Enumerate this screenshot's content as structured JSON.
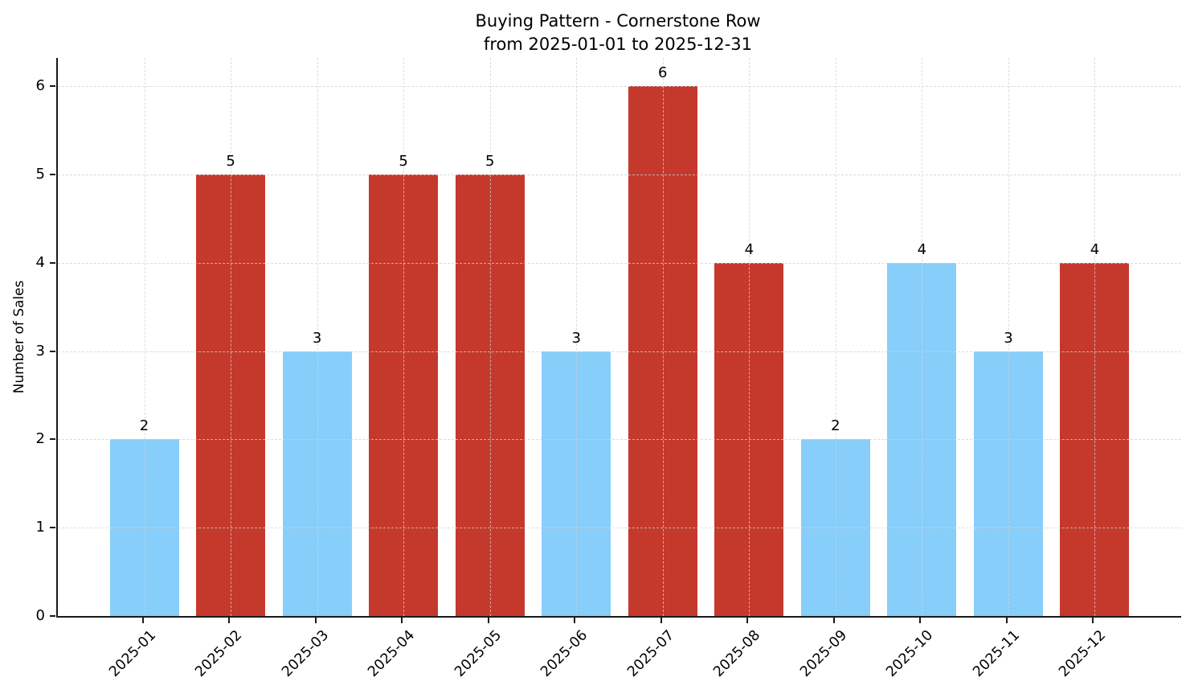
{
  "figure": {
    "background": "#ffffff"
  },
  "chart_data": {
    "type": "bar",
    "title": "Buying Pattern - Cornerstone Row\nfrom 2025-01-01 to 2025-12-31",
    "title_lines": [
      "Buying Pattern - Cornerstone Row",
      "from 2025-01-01 to 2025-12-31"
    ],
    "xlabel": "",
    "ylabel": "Number of Sales",
    "categories": [
      "2025-01",
      "2025-02",
      "2025-03",
      "2025-04",
      "2025-05",
      "2025-06",
      "2025-07",
      "2025-08",
      "2025-09",
      "2025-10",
      "2025-11",
      "2025-12"
    ],
    "values": [
      2,
      5,
      3,
      5,
      5,
      3,
      6,
      4,
      2,
      4,
      3,
      4
    ],
    "value_labels": [
      "2",
      "5",
      "3",
      "5",
      "5",
      "3",
      "6",
      "4",
      "2",
      "4",
      "3",
      "4"
    ],
    "bar_colors": [
      "#87CEFA",
      "#C4392B",
      "#87CEFA",
      "#C4392B",
      "#C4392B",
      "#87CEFA",
      "#C4392B",
      "#C4392B",
      "#87CEFA",
      "#87CEFA",
      "#87CEFA",
      "#C4392B"
    ],
    "colors": {
      "skyblue_bar": "#87CEFA",
      "red_bar": "#C4392B",
      "axis": "#1a1a1a",
      "grid": "#d2d2d2",
      "text": "#000000"
    },
    "yticks": [
      0,
      1,
      2,
      3,
      4,
      5,
      6
    ],
    "ylim": [
      0,
      6.32
    ],
    "bar_width_fraction": 0.8,
    "grid": "dashed, both axes",
    "legend": "none",
    "x_tick_rotation_deg": 45
  }
}
